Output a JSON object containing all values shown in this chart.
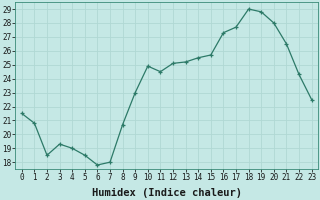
{
  "x": [
    0,
    1,
    2,
    3,
    4,
    5,
    6,
    7,
    8,
    9,
    10,
    11,
    12,
    13,
    14,
    15,
    16,
    17,
    18,
    19,
    20,
    21,
    22,
    23
  ],
  "y": [
    21.5,
    20.8,
    18.5,
    19.3,
    19.0,
    18.5,
    17.8,
    18.0,
    20.7,
    23.0,
    24.9,
    24.5,
    25.1,
    25.2,
    25.5,
    25.7,
    27.3,
    27.7,
    29.0,
    28.8,
    28.0,
    26.5,
    24.3,
    22.5
  ],
  "xlabel": "Humidex (Indice chaleur)",
  "ylim": [
    17.5,
    29.5
  ],
  "yticks": [
    18,
    19,
    20,
    21,
    22,
    23,
    24,
    25,
    26,
    27,
    28,
    29
  ],
  "line_color": "#2d7a68",
  "bg_color": "#c5e8e5",
  "grid_color": "#b0d8d4",
  "tick_fontsize": 5.5,
  "xlabel_fontsize": 7.5
}
